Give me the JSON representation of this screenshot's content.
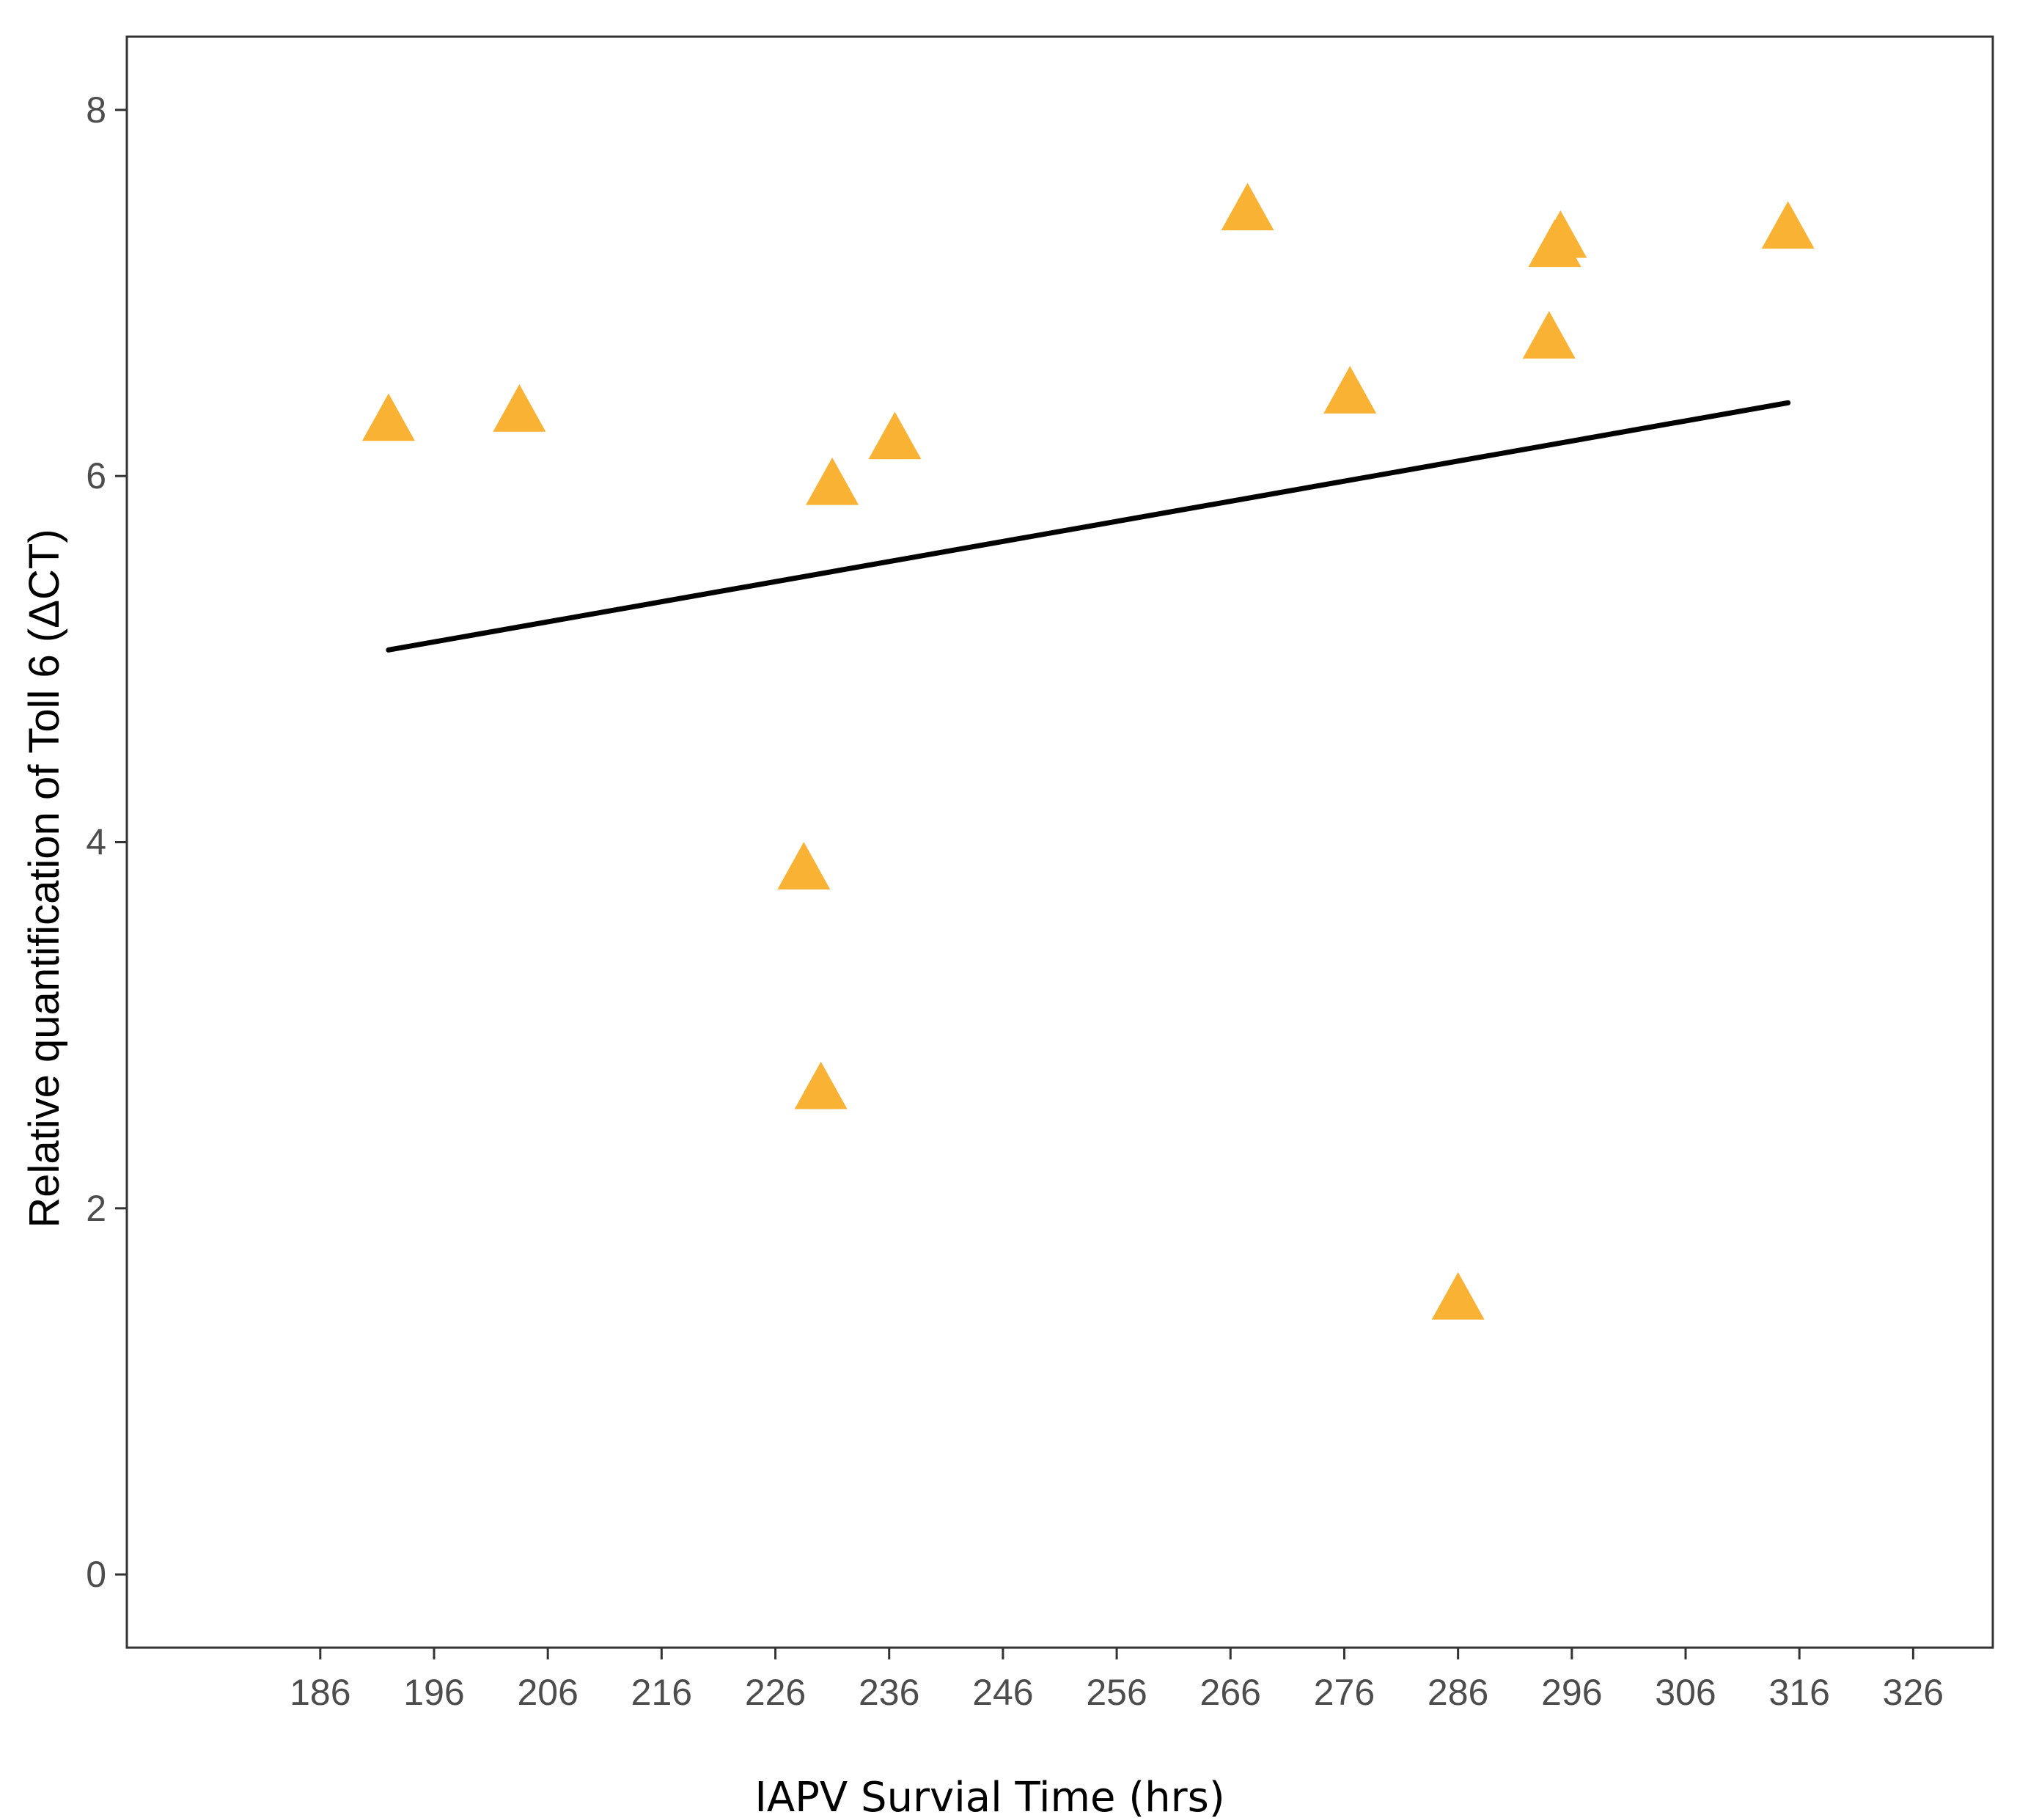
{
  "chart_data": {
    "type": "scatter",
    "xlabel": "IAPV Survial Time (hrs)",
    "ylabel": "Relative quantification of Toll 6 (ΔCT)",
    "xlim": [
      169,
      333
    ],
    "ylim": [
      -0.4,
      8.4
    ],
    "x_ticks": [
      186,
      196,
      206,
      216,
      226,
      236,
      246,
      256,
      266,
      276,
      286,
      296,
      306,
      316,
      326
    ],
    "y_ticks": [
      0,
      2,
      4,
      6,
      8
    ],
    "grid": false,
    "points": [
      {
        "x": 192,
        "y": 6.3
      },
      {
        "x": 203.5,
        "y": 6.35
      },
      {
        "x": 228.5,
        "y": 3.85
      },
      {
        "x": 230,
        "y": 2.65
      },
      {
        "x": 231,
        "y": 5.95
      },
      {
        "x": 236.5,
        "y": 6.2
      },
      {
        "x": 267.5,
        "y": 7.45
      },
      {
        "x": 276.5,
        "y": 6.45
      },
      {
        "x": 286,
        "y": 1.5
      },
      {
        "x": 294,
        "y": 6.75
      },
      {
        "x": 294.5,
        "y": 7.25
      },
      {
        "x": 295,
        "y": 7.3
      },
      {
        "x": 315,
        "y": 7.35
      }
    ],
    "trend_line": {
      "x": [
        192,
        315
      ],
      "y": [
        5.05,
        6.4
      ]
    },
    "marker": "triangle",
    "marker_color": "#F9B233",
    "line_color": "#000000"
  }
}
